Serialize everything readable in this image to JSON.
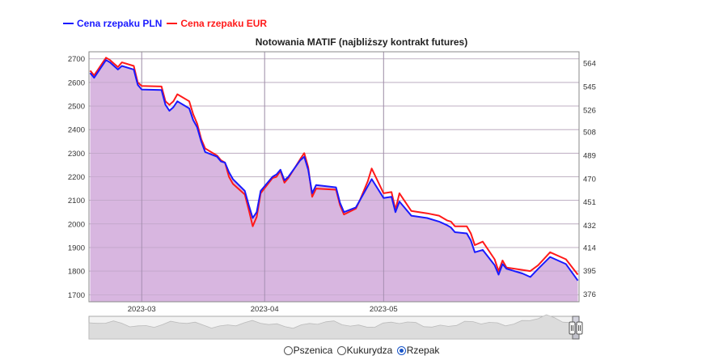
{
  "legend": {
    "pln_label": "Cena rzepaku PLN",
    "eur_label": "Cena rzepaku EUR"
  },
  "chart_title": "Notowania MATIF (najbliższy kontrakt futures)",
  "colors": {
    "pln": "#1a1aff",
    "eur": "#ff1a1a",
    "fill": "#d8b6e0",
    "grid": "#c8c8c8"
  },
  "chart_data": {
    "type": "line",
    "title": "Notowania MATIF (najbliższy kontrakt futures)",
    "x_ticks": [
      "2023-03",
      "2023-04",
      "2023-05"
    ],
    "y_left_ticks": [
      1700,
      1800,
      1900,
      2000,
      2100,
      2200,
      2300,
      2400,
      2500,
      2600,
      2700
    ],
    "y_right_ticks": [
      376,
      395,
      414,
      432,
      451,
      470,
      489,
      508,
      526,
      545,
      564
    ],
    "y_left_range": [
      1670,
      2730
    ],
    "y_right_range": [
      369.7,
      573.3
    ],
    "grid": true,
    "legend_position": "top-left",
    "series": [
      {
        "name": "Cena rzepaku PLN",
        "axis": "left",
        "points": [
          [
            "2023-02-16",
            2640
          ],
          [
            "2023-02-17",
            2620
          ],
          [
            "2023-02-20",
            2695
          ],
          [
            "2023-02-21",
            2685
          ],
          [
            "2023-02-22",
            2670
          ],
          [
            "2023-02-23",
            2655
          ],
          [
            "2023-02-24",
            2670
          ],
          [
            "2023-02-27",
            2655
          ],
          [
            "2023-02-28",
            2590
          ],
          [
            "2023-03-01",
            2570
          ],
          [
            "2023-03-06",
            2568
          ],
          [
            "2023-03-07",
            2505
          ],
          [
            "2023-03-08",
            2480
          ],
          [
            "2023-03-09",
            2495
          ],
          [
            "2023-03-10",
            2520
          ],
          [
            "2023-03-13",
            2490
          ],
          [
            "2023-03-14",
            2440
          ],
          [
            "2023-03-15",
            2410
          ],
          [
            "2023-03-16",
            2350
          ],
          [
            "2023-03-17",
            2305
          ],
          [
            "2023-03-20",
            2285
          ],
          [
            "2023-03-21",
            2265
          ],
          [
            "2023-03-22",
            2260
          ],
          [
            "2023-03-23",
            2220
          ],
          [
            "2023-03-24",
            2190
          ],
          [
            "2023-03-27",
            2140
          ],
          [
            "2023-03-28",
            2080
          ],
          [
            "2023-03-29",
            2025
          ],
          [
            "2023-03-30",
            2050
          ],
          [
            "2023-03-31",
            2140
          ],
          [
            "2023-04-03",
            2200
          ],
          [
            "2023-04-04",
            2210
          ],
          [
            "2023-04-05",
            2230
          ],
          [
            "2023-04-06",
            2185
          ],
          [
            "2023-04-07",
            2200
          ],
          [
            "2023-04-10",
            2270
          ],
          [
            "2023-04-11",
            2285
          ],
          [
            "2023-04-12",
            2230
          ],
          [
            "2023-04-13",
            2130
          ],
          [
            "2023-04-14",
            2165
          ],
          [
            "2023-04-19",
            2155
          ],
          [
            "2023-04-20",
            2090
          ],
          [
            "2023-04-21",
            2050
          ],
          [
            "2023-04-24",
            2070
          ],
          [
            "2023-04-25",
            2100
          ],
          [
            "2023-04-27",
            2160
          ],
          [
            "2023-04-28",
            2190
          ],
          [
            "2023-05-01",
            2110
          ],
          [
            "2023-05-03",
            2115
          ],
          [
            "2023-05-04",
            2050
          ],
          [
            "2023-05-05",
            2095
          ],
          [
            "2023-05-08",
            2035
          ],
          [
            "2023-05-12",
            2025
          ],
          [
            "2023-05-15",
            2010
          ],
          [
            "2023-05-17",
            1995
          ],
          [
            "2023-05-18",
            1985
          ],
          [
            "2023-05-19",
            1965
          ],
          [
            "2023-05-22",
            1960
          ],
          [
            "2023-05-23",
            1930
          ],
          [
            "2023-05-24",
            1880
          ],
          [
            "2023-05-26",
            1890
          ],
          [
            "2023-05-29",
            1825
          ],
          [
            "2023-05-30",
            1785
          ],
          [
            "2023-05-31",
            1830
          ],
          [
            "2023-06-01",
            1810
          ],
          [
            "2023-06-05",
            1790
          ],
          [
            "2023-06-07",
            1775
          ],
          [
            "2023-06-09",
            1810
          ],
          [
            "2023-06-12",
            1860
          ],
          [
            "2023-06-16",
            1830
          ],
          [
            "2023-06-19",
            1760
          ]
        ]
      },
      {
        "name": "Cena rzepaku EUR",
        "axis": "left",
        "points": [
          [
            "2023-02-16",
            2650
          ],
          [
            "2023-02-17",
            2630
          ],
          [
            "2023-02-20",
            2705
          ],
          [
            "2023-02-21",
            2695
          ],
          [
            "2023-02-22",
            2680
          ],
          [
            "2023-02-23",
            2665
          ],
          [
            "2023-02-24",
            2685
          ],
          [
            "2023-02-27",
            2670
          ],
          [
            "2023-02-28",
            2600
          ],
          [
            "2023-03-01",
            2585
          ],
          [
            "2023-03-06",
            2583
          ],
          [
            "2023-03-07",
            2520
          ],
          [
            "2023-03-08",
            2505
          ],
          [
            "2023-03-09",
            2520
          ],
          [
            "2023-03-10",
            2550
          ],
          [
            "2023-03-13",
            2520
          ],
          [
            "2023-03-14",
            2465
          ],
          [
            "2023-03-15",
            2425
          ],
          [
            "2023-03-16",
            2360
          ],
          [
            "2023-03-17",
            2320
          ],
          [
            "2023-03-20",
            2290
          ],
          [
            "2023-03-21",
            2270
          ],
          [
            "2023-03-22",
            2260
          ],
          [
            "2023-03-23",
            2200
          ],
          [
            "2023-03-24",
            2170
          ],
          [
            "2023-03-27",
            2125
          ],
          [
            "2023-03-28",
            2060
          ],
          [
            "2023-03-29",
            1990
          ],
          [
            "2023-03-30",
            2030
          ],
          [
            "2023-03-31",
            2130
          ],
          [
            "2023-04-03",
            2195
          ],
          [
            "2023-04-04",
            2200
          ],
          [
            "2023-04-05",
            2225
          ],
          [
            "2023-04-06",
            2175
          ],
          [
            "2023-04-07",
            2195
          ],
          [
            "2023-04-10",
            2275
          ],
          [
            "2023-04-11",
            2300
          ],
          [
            "2023-04-12",
            2240
          ],
          [
            "2023-04-13",
            2115
          ],
          [
            "2023-04-14",
            2150
          ],
          [
            "2023-04-19",
            2145
          ],
          [
            "2023-04-20",
            2080
          ],
          [
            "2023-04-21",
            2040
          ],
          [
            "2023-04-24",
            2065
          ],
          [
            "2023-04-25",
            2100
          ],
          [
            "2023-04-27",
            2180
          ],
          [
            "2023-04-28",
            2235
          ],
          [
            "2023-05-01",
            2130
          ],
          [
            "2023-05-03",
            2135
          ],
          [
            "2023-05-04",
            2060
          ],
          [
            "2023-05-05",
            2130
          ],
          [
            "2023-05-08",
            2055
          ],
          [
            "2023-05-12",
            2045
          ],
          [
            "2023-05-15",
            2035
          ],
          [
            "2023-05-17",
            2015
          ],
          [
            "2023-05-18",
            2010
          ],
          [
            "2023-05-19",
            1990
          ],
          [
            "2023-05-22",
            1990
          ],
          [
            "2023-05-23",
            1960
          ],
          [
            "2023-05-24",
            1910
          ],
          [
            "2023-05-26",
            1925
          ],
          [
            "2023-05-29",
            1850
          ],
          [
            "2023-05-30",
            1800
          ],
          [
            "2023-05-31",
            1845
          ],
          [
            "2023-06-01",
            1815
          ],
          [
            "2023-06-05",
            1805
          ],
          [
            "2023-06-07",
            1800
          ],
          [
            "2023-06-09",
            1825
          ],
          [
            "2023-06-12",
            1880
          ],
          [
            "2023-06-16",
            1850
          ],
          [
            "2023-06-19",
            1785
          ]
        ]
      }
    ]
  },
  "navigator": {
    "handle_icon": "range-handle-icon"
  },
  "commodity_selector": {
    "options": [
      {
        "label": "Pszenica",
        "checked": false
      },
      {
        "label": "Kukurydza",
        "checked": false
      },
      {
        "label": "Rzepak",
        "checked": true
      }
    ]
  }
}
